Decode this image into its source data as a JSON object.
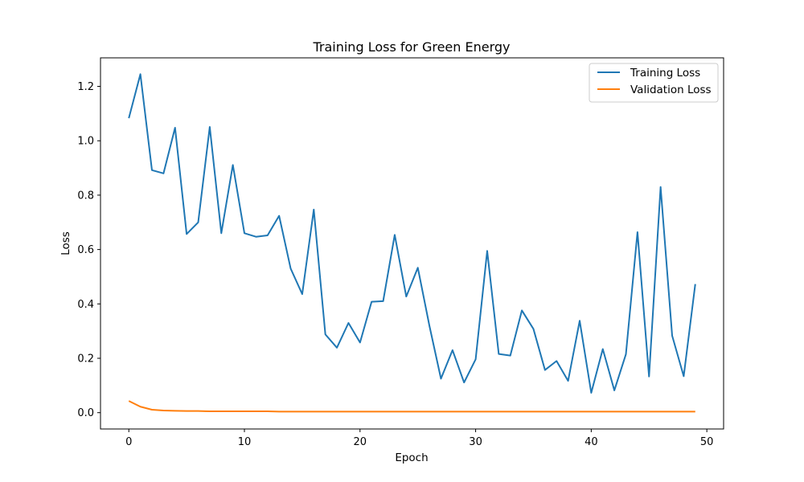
{
  "chart_data": {
    "type": "line",
    "title": "Training Loss for Green Energy",
    "xlabel": "Epoch",
    "ylabel": "Loss",
    "xlim": [
      -2.45,
      51.45
    ],
    "ylim": [
      -0.06,
      1.305
    ],
    "x_ticks": [
      0,
      10,
      20,
      30,
      40,
      50
    ],
    "y_ticks": [
      0.0,
      0.2,
      0.4,
      0.6,
      0.8,
      1.0,
      1.2
    ],
    "grid": false,
    "legend_position": "top-right",
    "x": [
      0,
      1,
      2,
      3,
      4,
      5,
      6,
      7,
      8,
      9,
      10,
      11,
      12,
      13,
      14,
      15,
      16,
      17,
      18,
      19,
      20,
      21,
      22,
      23,
      24,
      25,
      26,
      27,
      28,
      29,
      30,
      31,
      32,
      33,
      34,
      35,
      36,
      37,
      38,
      39,
      40,
      41,
      42,
      43,
      44,
      45,
      46,
      47,
      48,
      49
    ],
    "series": [
      {
        "name": "Training Loss",
        "color": "#1f77b4",
        "values": [
          1.083,
          1.245,
          0.892,
          0.88,
          1.048,
          0.657,
          0.7,
          1.051,
          0.66,
          0.911,
          0.66,
          0.647,
          0.652,
          0.724,
          0.53,
          0.436,
          0.747,
          0.288,
          0.239,
          0.33,
          0.258,
          0.408,
          0.41,
          0.654,
          0.427,
          0.533,
          0.32,
          0.125,
          0.23,
          0.111,
          0.196,
          0.595,
          0.216,
          0.21,
          0.376,
          0.308,
          0.157,
          0.19,
          0.117,
          0.338,
          0.073,
          0.234,
          0.082,
          0.215,
          0.664,
          0.133,
          0.83,
          0.283,
          0.134,
          0.473
        ]
      },
      {
        "name": "Validation Loss",
        "color": "#ff7f0e",
        "values": [
          0.043,
          0.022,
          0.011,
          0.008,
          0.007,
          0.006,
          0.006,
          0.005,
          0.005,
          0.005,
          0.005,
          0.005,
          0.005,
          0.004,
          0.004,
          0.004,
          0.004,
          0.004,
          0.004,
          0.004,
          0.004,
          0.004,
          0.004,
          0.004,
          0.004,
          0.004,
          0.004,
          0.004,
          0.004,
          0.004,
          0.004,
          0.004,
          0.004,
          0.004,
          0.004,
          0.004,
          0.004,
          0.004,
          0.004,
          0.004,
          0.004,
          0.004,
          0.004,
          0.004,
          0.004,
          0.004,
          0.004,
          0.004,
          0.004,
          0.004
        ]
      }
    ]
  }
}
